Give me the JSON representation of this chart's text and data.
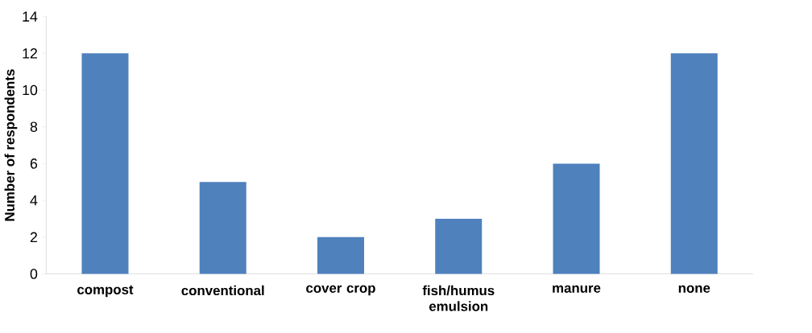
{
  "chart_data": {
    "type": "bar",
    "ylabel": "Number of respondents",
    "categories": [
      "compost",
      "conventional",
      "cover crop",
      "fish/humus emulsion",
      "manure",
      "none"
    ],
    "values": [
      12,
      5,
      2,
      3,
      6,
      12
    ],
    "color": "#4f81bd",
    "ylim": [
      0,
      14
    ],
    "yticks": [
      0,
      2,
      4,
      6,
      8,
      10,
      12,
      14
    ]
  }
}
